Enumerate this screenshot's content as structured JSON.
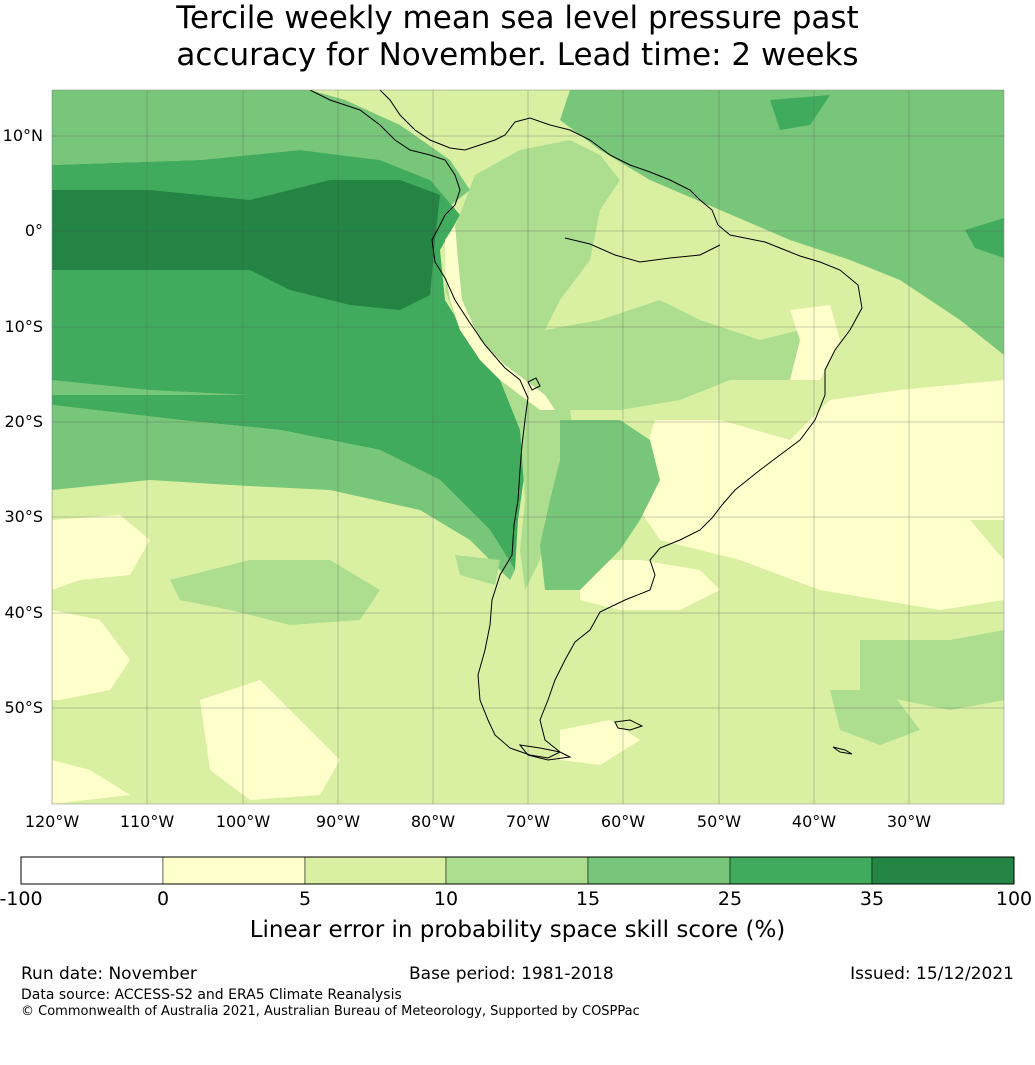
{
  "title": {
    "line1": "Tercile weekly mean sea level pressure past",
    "line2": "accuracy for November. Lead time: 2 weeks"
  },
  "map": {
    "lat_ticks": [
      "10°N",
      "0°",
      "10°S",
      "20°S",
      "30°S",
      "40°S",
      "50°S"
    ],
    "lon_ticks": [
      "120°W",
      "110°W",
      "100°W",
      "90°W",
      "80°W",
      "70°W",
      "60°W",
      "50°W",
      "40°W",
      "30°W"
    ],
    "colors": {
      "ocean_base": "#d9f0a3",
      "land_base": "#d9f0a3",
      "bin_0_5": "#ffffcc",
      "bin_5_10": "#d9f0a3",
      "bin_10_15": "#addd8e",
      "bin_15_25": "#78c679",
      "bin_25_35": "#41ab5d",
      "bin_35_100": "#238443",
      "coast": "#000000",
      "grid": "#555555"
    }
  },
  "colorbar": {
    "ticks": [
      "-100",
      "0",
      "5",
      "10",
      "15",
      "25",
      "35",
      "100"
    ],
    "colors": [
      "#ffffff",
      "#ffffcc",
      "#d9f0a3",
      "#addd8e",
      "#78c679",
      "#41ab5d",
      "#238443"
    ],
    "label": "Linear error in probability space skill score (%)"
  },
  "footer": {
    "run_date": "Run date: November",
    "base_period": "Base period: 1981-2018",
    "issued": "Issued: 15/12/2021",
    "data_source": "Data source: ACCESS-S2 and ERA5 Climate Reanalysis",
    "copyright": "© Commonwealth of Australia 2021, Australian Bureau of Meteorology, Supported by COSPPac"
  }
}
